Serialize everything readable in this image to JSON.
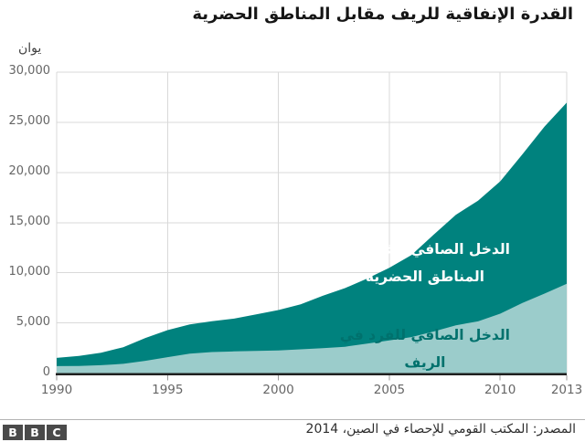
{
  "title": "القدرة الإنفاقية للريف مقابل المناطق الحضرية",
  "y_axis": {
    "unit": "يوان",
    "ticks": [
      {
        "label": "30,000",
        "value": 30000
      },
      {
        "label": "25,000",
        "value": 25000
      },
      {
        "label": "20,000",
        "value": 20000
      },
      {
        "label": "15,000",
        "value": 15000
      },
      {
        "label": "10,000",
        "value": 10000
      },
      {
        "label": "5,000",
        "value": 5000
      },
      {
        "label": "0",
        "value": 0
      }
    ]
  },
  "x_axis": {
    "ticks": [
      {
        "label": "1990",
        "value": 1990
      },
      {
        "label": "1995",
        "value": 1995
      },
      {
        "label": "2000",
        "value": 2000
      },
      {
        "label": "2005",
        "value": 2005
      },
      {
        "label": "2010",
        "value": 2010
      },
      {
        "label": "2013",
        "value": 2013
      }
    ]
  },
  "labels": {
    "urban": {
      "line1": "الدخل الصافي للفرد في",
      "line2": "المناطق الحضرية"
    },
    "rural": {
      "line1": "الدخل الصافي للفرد في",
      "line2": "الريف"
    }
  },
  "colors": {
    "urban_area": "#00827e",
    "rural_area": "#9bcccb",
    "grid": "#d9d9d9",
    "axis_line": "#1f1f1f",
    "tick_mark": "#999999",
    "tick_text": "#666666"
  },
  "footer": {
    "logo_letters": [
      "B",
      "B",
      "C"
    ],
    "source": "المصدر: المكتب القومي للإحصاء في الصين، 2014"
  },
  "chart_data": {
    "type": "area",
    "overlay": true,
    "title": "القدرة الإنفاقية للريف مقابل المناطق الحضرية",
    "ylabel": "يوان",
    "xlabel": "",
    "ylim": [
      0,
      30000
    ],
    "x_ticks": [
      1990,
      1995,
      2000,
      2005,
      2010,
      2013
    ],
    "grid": true,
    "x": [
      1990,
      1991,
      1992,
      1993,
      1994,
      1995,
      1996,
      1997,
      1998,
      1999,
      2000,
      2001,
      2002,
      2003,
      2004,
      2005,
      2006,
      2007,
      2008,
      2009,
      2010,
      2011,
      2012,
      2013
    ],
    "series": [
      {
        "name": "الدخل الصافي للفرد في المناطق الحضرية",
        "color": "#00827e",
        "values": [
          1510,
          1700,
          2030,
          2580,
          3500,
          4280,
          4840,
          5160,
          5430,
          5850,
          6280,
          6860,
          7700,
          8470,
          9420,
          10490,
          11760,
          13790,
          15780,
          17180,
          19110,
          21810,
          24570,
          26955
        ]
      },
      {
        "name": "الدخل الصافي للفرد في الريف",
        "color": "#9bcccb",
        "values": [
          690,
          710,
          780,
          920,
          1220,
          1580,
          1930,
          2090,
          2160,
          2210,
          2250,
          2370,
          2480,
          2620,
          2940,
          3260,
          3590,
          4140,
          4760,
          5150,
          5920,
          6980,
          7920,
          8896
        ]
      }
    ]
  }
}
